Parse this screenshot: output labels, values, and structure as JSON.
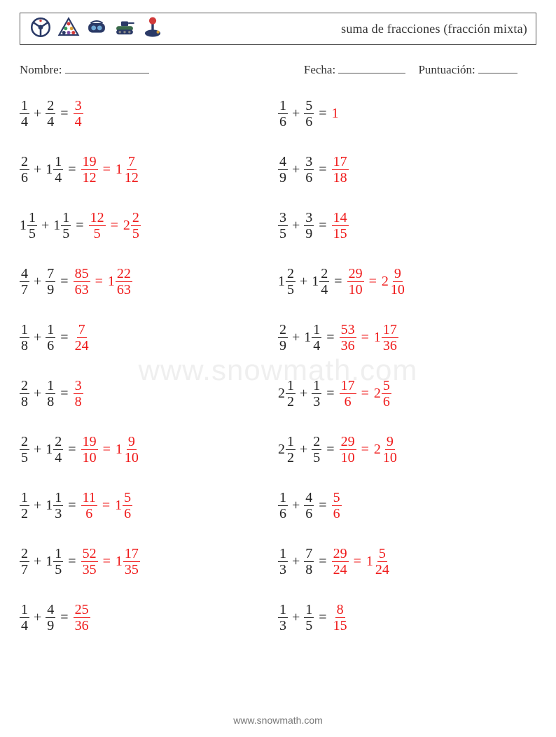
{
  "colors": {
    "text": "#222222",
    "answer": "#ef1a1a",
    "border": "#555555",
    "watermark": "rgba(120,120,120,0.12)",
    "footer": "#777777",
    "background": "#ffffff"
  },
  "title": "suma de fracciones (fracción mixta)",
  "meta": {
    "name_label": "Nombre:",
    "date_label": "Fecha:",
    "score_label": "Puntuación:",
    "name_blank_width": 120,
    "date_blank_width": 96,
    "score_blank_width": 56
  },
  "watermark": "www.snowmath.com",
  "footer": "www.snowmath.com",
  "icon_colors": {
    "wheel": "#2b3a67",
    "billiards": "#2b3a67",
    "vr": "#2b3a67",
    "tank": "#2b3a67",
    "joystick": "#2b3a67",
    "accent_red": "#d13a3a",
    "accent_green": "#3a9a5a",
    "accent_yellow": "#d9a03a"
  },
  "problems": [
    [
      {
        "a": {
          "n": 1,
          "d": 4
        },
        "b": {
          "n": 2,
          "d": 4
        },
        "ans": [
          {
            "n": 3,
            "d": 4
          }
        ]
      },
      {
        "a": {
          "n": 1,
          "d": 6
        },
        "b": {
          "n": 5,
          "d": 6
        },
        "ans": [
          {
            "v": 1
          }
        ]
      }
    ],
    [
      {
        "a": {
          "n": 2,
          "d": 6
        },
        "b": {
          "w": 1,
          "n": 1,
          "d": 4
        },
        "ans": [
          {
            "n": 19,
            "d": 12
          },
          {
            "w": 1,
            "n": 7,
            "d": 12
          }
        ]
      },
      {
        "a": {
          "n": 4,
          "d": 9
        },
        "b": {
          "n": 3,
          "d": 6
        },
        "ans": [
          {
            "n": 17,
            "d": 18
          }
        ]
      }
    ],
    [
      {
        "a": {
          "w": 1,
          "n": 1,
          "d": 5
        },
        "b": {
          "w": 1,
          "n": 1,
          "d": 5
        },
        "ans": [
          {
            "n": 12,
            "d": 5
          },
          {
            "w": 2,
            "n": 2,
            "d": 5
          }
        ]
      },
      {
        "a": {
          "n": 3,
          "d": 5
        },
        "b": {
          "n": 3,
          "d": 9
        },
        "ans": [
          {
            "n": 14,
            "d": 15
          }
        ]
      }
    ],
    [
      {
        "a": {
          "n": 4,
          "d": 7
        },
        "b": {
          "n": 7,
          "d": 9
        },
        "ans": [
          {
            "n": 85,
            "d": 63
          },
          {
            "w": 1,
            "n": 22,
            "d": 63
          }
        ]
      },
      {
        "a": {
          "w": 1,
          "n": 2,
          "d": 5
        },
        "b": {
          "w": 1,
          "n": 2,
          "d": 4
        },
        "ans": [
          {
            "n": 29,
            "d": 10
          },
          {
            "w": 2,
            "n": 9,
            "d": 10
          }
        ]
      }
    ],
    [
      {
        "a": {
          "n": 1,
          "d": 8
        },
        "b": {
          "n": 1,
          "d": 6
        },
        "ans": [
          {
            "n": 7,
            "d": 24
          }
        ]
      },
      {
        "a": {
          "n": 2,
          "d": 9
        },
        "b": {
          "w": 1,
          "n": 1,
          "d": 4
        },
        "ans": [
          {
            "n": 53,
            "d": 36
          },
          {
            "w": 1,
            "n": 17,
            "d": 36
          }
        ]
      }
    ],
    [
      {
        "a": {
          "n": 2,
          "d": 8
        },
        "b": {
          "n": 1,
          "d": 8
        },
        "ans": [
          {
            "n": 3,
            "d": 8
          }
        ]
      },
      {
        "a": {
          "w": 2,
          "n": 1,
          "d": 2
        },
        "b": {
          "n": 1,
          "d": 3
        },
        "ans": [
          {
            "n": 17,
            "d": 6
          },
          {
            "w": 2,
            "n": 5,
            "d": 6
          }
        ]
      }
    ],
    [
      {
        "a": {
          "n": 2,
          "d": 5
        },
        "b": {
          "w": 1,
          "n": 2,
          "d": 4
        },
        "ans": [
          {
            "n": 19,
            "d": 10
          },
          {
            "w": 1,
            "n": 9,
            "d": 10
          }
        ]
      },
      {
        "a": {
          "w": 2,
          "n": 1,
          "d": 2
        },
        "b": {
          "n": 2,
          "d": 5
        },
        "ans": [
          {
            "n": 29,
            "d": 10
          },
          {
            "w": 2,
            "n": 9,
            "d": 10
          }
        ]
      }
    ],
    [
      {
        "a": {
          "n": 1,
          "d": 2
        },
        "b": {
          "w": 1,
          "n": 1,
          "d": 3
        },
        "ans": [
          {
            "n": 11,
            "d": 6
          },
          {
            "w": 1,
            "n": 5,
            "d": 6
          }
        ]
      },
      {
        "a": {
          "n": 1,
          "d": 6
        },
        "b": {
          "n": 4,
          "d": 6
        },
        "ans": [
          {
            "n": 5,
            "d": 6
          }
        ]
      }
    ],
    [
      {
        "a": {
          "n": 2,
          "d": 7
        },
        "b": {
          "w": 1,
          "n": 1,
          "d": 5
        },
        "ans": [
          {
            "n": 52,
            "d": 35
          },
          {
            "w": 1,
            "n": 17,
            "d": 35
          }
        ]
      },
      {
        "a": {
          "n": 1,
          "d": 3
        },
        "b": {
          "n": 7,
          "d": 8
        },
        "ans": [
          {
            "n": 29,
            "d": 24
          },
          {
            "w": 1,
            "n": 5,
            "d": 24
          }
        ]
      }
    ],
    [
      {
        "a": {
          "n": 1,
          "d": 4
        },
        "b": {
          "n": 4,
          "d": 9
        },
        "ans": [
          {
            "n": 25,
            "d": 36
          }
        ]
      },
      {
        "a": {
          "n": 1,
          "d": 3
        },
        "b": {
          "n": 1,
          "d": 5
        },
        "ans": [
          {
            "n": 8,
            "d": 15
          }
        ]
      }
    ]
  ]
}
